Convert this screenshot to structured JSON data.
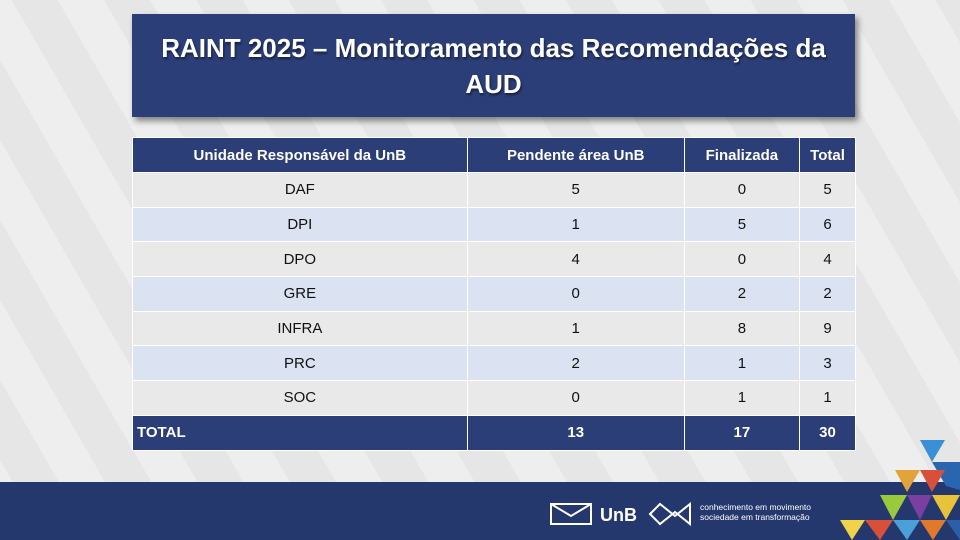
{
  "header": {
    "title": "RAINT 2025 – Monitoramento das Recomendações da AUD"
  },
  "table": {
    "columns": [
      "Unidade Responsável da UnB",
      "Pendente área UnB",
      "Finalizada",
      "Total"
    ],
    "rows": [
      [
        "DAF",
        5,
        0,
        5
      ],
      [
        "DPI",
        1,
        5,
        6
      ],
      [
        "DPO",
        4,
        0,
        4
      ],
      [
        "GRE",
        0,
        2,
        2
      ],
      [
        "INFRA",
        1,
        8,
        9
      ],
      [
        "PRC",
        2,
        1,
        3
      ],
      [
        "SOC",
        0,
        1,
        1
      ]
    ],
    "total": [
      "TOTAL",
      13,
      17,
      30
    ]
  },
  "footer": {
    "logo": "UnB",
    "slogan_line1": "conhecimento em movimento",
    "slogan_line2": "sociedade em transformação"
  }
}
